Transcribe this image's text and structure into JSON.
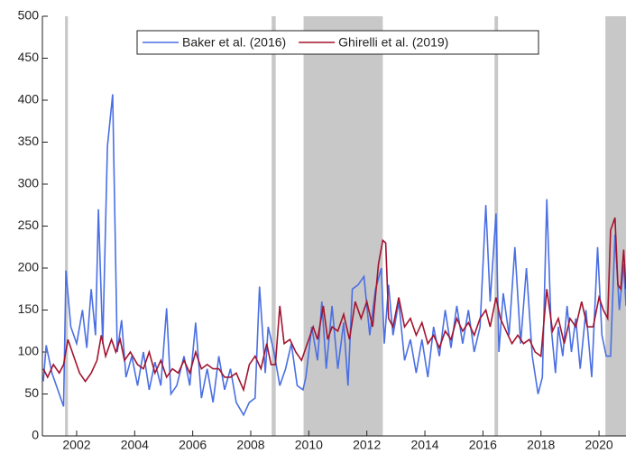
{
  "chart_data": {
    "type": "line",
    "xlim": [
      2000.82,
      2020.93
    ],
    "ylim": [
      0,
      500
    ],
    "xticks": [
      2002,
      2004,
      2006,
      2008,
      2010,
      2012,
      2014,
      2016,
      2018,
      2020
    ],
    "yticks": [
      0,
      50,
      100,
      150,
      200,
      250,
      300,
      350,
      400,
      450,
      500
    ],
    "grid": false,
    "legend": "top",
    "shaded_periods": {
      "color": "#c8c8c8",
      "ranges": [
        [
          2001.6,
          2001.7
        ],
        [
          2008.72,
          2008.86
        ],
        [
          2009.82,
          2012.55
        ],
        [
          2016.4,
          2016.52
        ],
        [
          2020.22,
          2020.93
        ]
      ]
    },
    "series": [
      {
        "name": "Baker et al. (2016)",
        "color": "#4a6fe3",
        "x": [
          2000.85,
          2000.95,
          2001.15,
          2001.4,
          2001.55,
          2001.63,
          2001.8,
          2002.0,
          2002.2,
          2002.35,
          2002.5,
          2002.65,
          2002.75,
          2002.9,
          2003.06,
          2003.24,
          2003.4,
          2003.55,
          2003.7,
          2003.9,
          2004.1,
          2004.3,
          2004.5,
          2004.7,
          2004.9,
          2005.1,
          2005.25,
          2005.45,
          2005.7,
          2005.9,
          2006.1,
          2006.3,
          2006.5,
          2006.7,
          2006.9,
          2007.1,
          2007.3,
          2007.5,
          2007.75,
          2007.95,
          2008.15,
          2008.3,
          2008.5,
          2008.6,
          2008.8,
          2009.0,
          2009.2,
          2009.4,
          2009.6,
          2009.8,
          2009.9,
          2010.1,
          2010.3,
          2010.45,
          2010.6,
          2010.8,
          2011.0,
          2011.2,
          2011.35,
          2011.5,
          2011.7,
          2011.9,
          2012.1,
          2012.3,
          2012.5,
          2012.6,
          2012.75,
          2012.9,
          2013.1,
          2013.3,
          2013.5,
          2013.7,
          2013.9,
          2014.1,
          2014.3,
          2014.5,
          2014.7,
          2014.9,
          2015.1,
          2015.3,
          2015.5,
          2015.7,
          2015.9,
          2016.1,
          2016.25,
          2016.45,
          2016.55,
          2016.7,
          2016.9,
          2017.1,
          2017.3,
          2017.5,
          2017.7,
          2017.9,
          2018.05,
          2018.2,
          2018.35,
          2018.5,
          2018.6,
          2018.75,
          2018.9,
          2019.05,
          2019.2,
          2019.35,
          2019.55,
          2019.75,
          2019.95,
          2020.1,
          2020.25,
          2020.4,
          2020.55,
          2020.7,
          2020.85,
          2020.93
        ],
        "values": [
          65,
          108,
          75,
          50,
          35,
          197,
          130,
          110,
          150,
          105,
          175,
          120,
          270,
          110,
          345,
          407,
          100,
          138,
          70,
          95,
          60,
          100,
          55,
          88,
          60,
          152,
          50,
          60,
          95,
          60,
          135,
          45,
          80,
          40,
          95,
          55,
          80,
          40,
          25,
          40,
          45,
          178,
          75,
          130,
          100,
          60,
          80,
          110,
          60,
          55,
          70,
          130,
          90,
          160,
          80,
          155,
          80,
          135,
          60,
          175,
          180,
          190,
          120,
          175,
          200,
          110,
          180,
          120,
          160,
          90,
          115,
          75,
          115,
          70,
          130,
          95,
          150,
          105,
          155,
          110,
          150,
          100,
          130,
          275,
          160,
          265,
          100,
          170,
          120,
          225,
          110,
          200,
          95,
          50,
          70,
          282,
          130,
          75,
          130,
          95,
          155,
          100,
          140,
          80,
          150,
          70,
          225,
          120,
          95,
          95,
          240,
          150,
          205,
          155
        ]
      },
      {
        "name": "Ghirelli et al. (2019)",
        "color": "#a2142f",
        "x": [
          2000.85,
          2001.0,
          2001.2,
          2001.4,
          2001.55,
          2001.7,
          2001.9,
          2002.1,
          2002.3,
          2002.5,
          2002.7,
          2002.85,
          2003.0,
          2003.2,
          2003.35,
          2003.5,
          2003.65,
          2003.85,
          2004.1,
          2004.3,
          2004.5,
          2004.7,
          2004.9,
          2005.1,
          2005.3,
          2005.5,
          2005.7,
          2005.9,
          2006.1,
          2006.3,
          2006.5,
          2006.7,
          2006.9,
          2007.1,
          2007.3,
          2007.5,
          2007.75,
          2007.95,
          2008.15,
          2008.35,
          2008.55,
          2008.7,
          2008.85,
          2009.0,
          2009.15,
          2009.35,
          2009.55,
          2009.75,
          2009.95,
          2010.15,
          2010.3,
          2010.5,
          2010.65,
          2010.8,
          2011.0,
          2011.2,
          2011.4,
          2011.6,
          2011.8,
          2012.0,
          2012.2,
          2012.4,
          2012.55,
          2012.65,
          2012.75,
          2012.9,
          2013.1,
          2013.3,
          2013.5,
          2013.7,
          2013.9,
          2014.1,
          2014.3,
          2014.5,
          2014.7,
          2014.9,
          2015.1,
          2015.3,
          2015.5,
          2015.7,
          2015.9,
          2016.1,
          2016.25,
          2016.45,
          2016.6,
          2016.8,
          2017.0,
          2017.2,
          2017.4,
          2017.6,
          2017.8,
          2018.0,
          2018.2,
          2018.4,
          2018.6,
          2018.8,
          2019.0,
          2019.2,
          2019.4,
          2019.6,
          2019.8,
          2020.0,
          2020.15,
          2020.3,
          2020.4,
          2020.55,
          2020.65,
          2020.75,
          2020.85,
          2020.93
        ],
        "values": [
          80,
          70,
          85,
          75,
          85,
          115,
          95,
          75,
          65,
          75,
          90,
          120,
          95,
          115,
          100,
          115,
          90,
          100,
          85,
          80,
          100,
          75,
          90,
          70,
          80,
          75,
          90,
          75,
          100,
          80,
          85,
          80,
          80,
          70,
          70,
          75,
          55,
          85,
          95,
          80,
          110,
          85,
          85,
          155,
          110,
          115,
          100,
          90,
          110,
          130,
          115,
          155,
          115,
          130,
          125,
          145,
          115,
          160,
          140,
          160,
          130,
          205,
          233,
          230,
          140,
          130,
          165,
          130,
          140,
          120,
          135,
          110,
          120,
          105,
          125,
          115,
          140,
          125,
          135,
          120,
          140,
          150,
          130,
          165,
          140,
          125,
          110,
          120,
          110,
          115,
          100,
          95,
          175,
          125,
          140,
          110,
          140,
          130,
          160,
          130,
          130,
          165,
          150,
          140,
          245,
          260,
          180,
          175,
          222,
          175
        ]
      }
    ]
  }
}
